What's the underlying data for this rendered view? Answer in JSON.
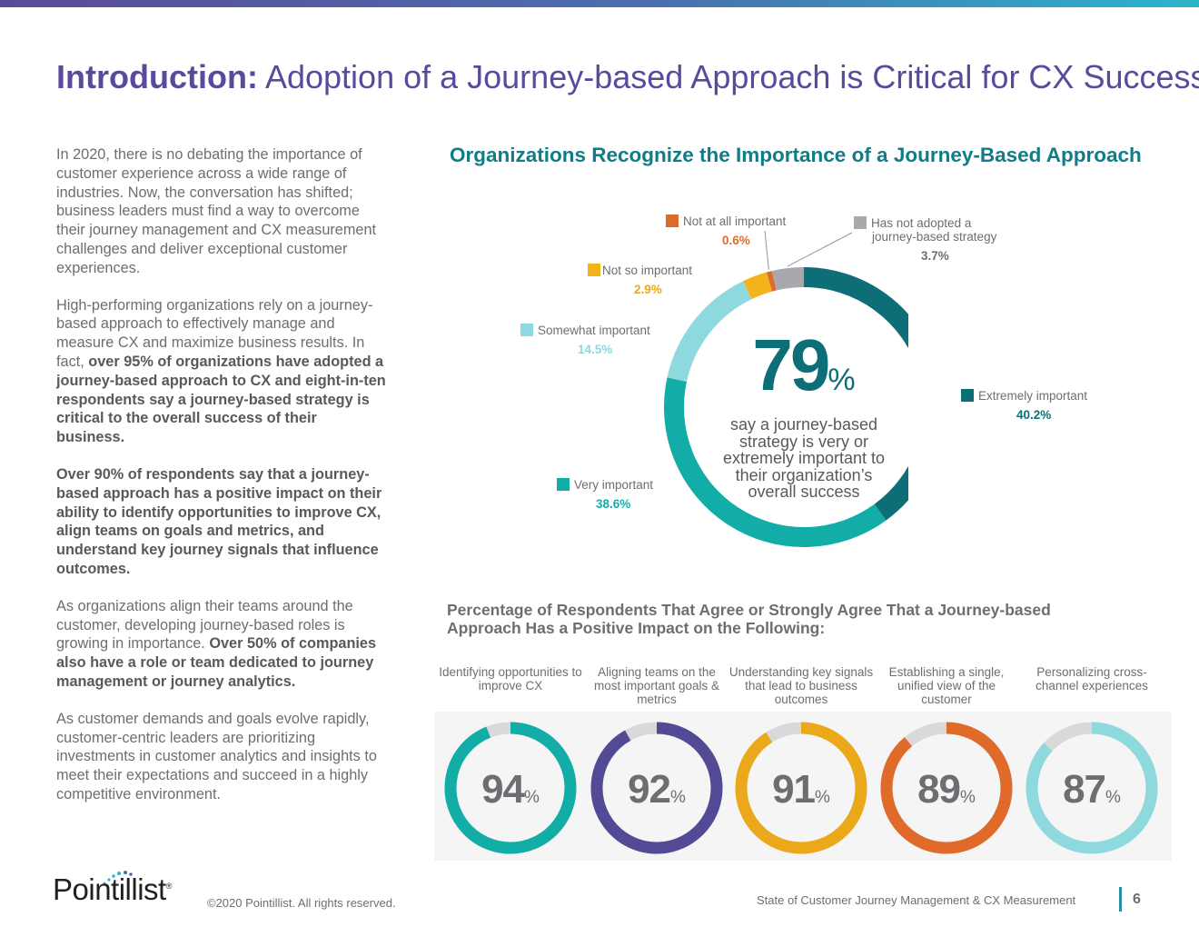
{
  "header": {
    "title_bold": "Introduction:",
    "title_rest": " Adoption of a Journey-based Approach is Critical for CX Success",
    "accent_color": "#5b4a9b"
  },
  "body": {
    "p1": "In 2020, there is no debating the importance of customer experience across a wide range of  industries. Now, the conversation has shifted; business leaders must find a way to overcome their journey management and CX measurement challenges and deliver exceptional customer experiences.",
    "p2_plain": "High-performing organizations rely on a journey-based approach to effectively manage and measure CX and maximize business results. In fact, ",
    "p2_bold": "over 95% of organizations have adopted a journey-based approach to CX and eight-in-ten respondents say a journey-based strategy is critical to the overall success of their business.",
    "p3_bold": "Over 90% of respondents say that a journey-based approach has a positive impact on their ability to identify opportunities to improve CX, align teams on goals and metrics, and understand key journey signals that influence outcomes.",
    "p4_plain": "As organizations align their teams around the customer, developing journey-based roles is growing in importance. ",
    "p4_bold": "Over 50% of companies also have a role or team dedicated to journey management or journey analytics.",
    "p5": "As customer demands and goals evolve rapidly, customer-centric leaders are prioritizing investments in customer analytics and insights to meet their expectations and succeed in a highly competitive environment."
  },
  "chart_data": [
    {
      "type": "pie",
      "title": "Organizations Recognize the Importance of a Journey-Based Approach",
      "slices": [
        {
          "label": "Extremely important",
          "value": 40.2,
          "value_label": "40.2%",
          "color": "#0d6e78"
        },
        {
          "label": "Very important",
          "value": 38.6,
          "value_label": "38.6%",
          "color": "#12ada7"
        },
        {
          "label": "Somewhat important",
          "value": 14.5,
          "value_label": "14.5%",
          "color": "#8ed9de"
        },
        {
          "label": "Not so important",
          "value": 2.9,
          "value_label": "2.9%",
          "color": "#f2b31b"
        },
        {
          "label": "Not at all important",
          "value": 0.6,
          "value_label": "0.6%",
          "color": "#e06a2a"
        },
        {
          "label": "Has not adopted a journey-based strategy",
          "label_line1": "Has not adopted a",
          "label_line2": "journey-based strategy",
          "value": 3.7,
          "value_label": "3.7%",
          "color": "#a7a9ac"
        }
      ],
      "center_value": "79",
      "center_unit": "%",
      "center_text": "say a journey-based strategy is very or extremely important to their organization’s overall success"
    },
    {
      "type": "bar",
      "title": "Percentage of Respondents That Agree or Strongly Agree That a Journey-based Approach Has a Positive Impact on the Following:",
      "categories": [
        "Identifying opportunities to improve CX",
        "Aligning teams on the most important goals & metrics",
        "Understanding key signals that lead to business outcomes",
        "Establishing a single, unified view of the customer",
        "Personalizing cross-channel experiences"
      ],
      "values": [
        94,
        92,
        91,
        89,
        87
      ],
      "unit": "%",
      "colors": [
        "#12ada7",
        "#524a94",
        "#eaa81a",
        "#e06a2a",
        "#8ed9de"
      ],
      "track_color": "#d9d9d9",
      "ylim": [
        0,
        100
      ]
    }
  ],
  "footer": {
    "logo_text": "Pointillist",
    "logo_reg": "®",
    "copyright": "©2020 Pointillist. All rights reserved.",
    "report_name": "State of Customer Journey Management & CX Measurement",
    "page_number": "6"
  }
}
